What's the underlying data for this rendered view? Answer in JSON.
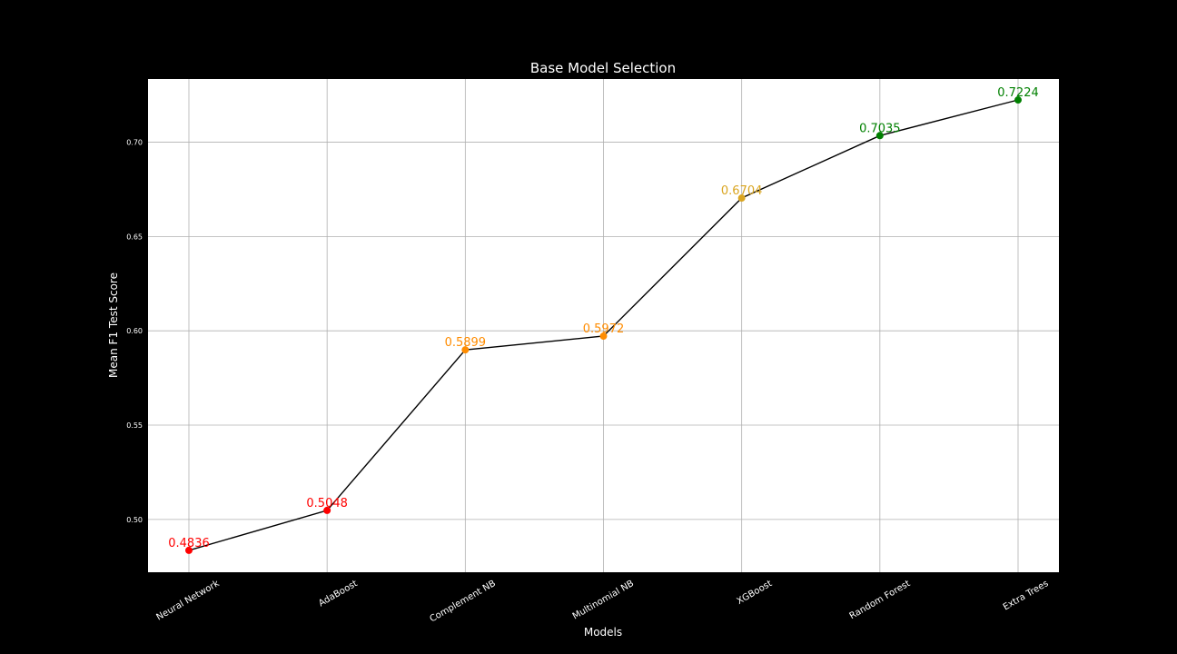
{
  "chart_data": {
    "type": "line",
    "title": "Base Model Selection",
    "xlabel": "Models",
    "ylabel": "Mean F1 Test Score",
    "categories": [
      "Neural Network",
      "AdaBoost",
      "Complement NB",
      "Multinomial NB",
      "XGBoost",
      "Random Forest",
      "Extra Trees"
    ],
    "values": [
      0.4836,
      0.5048,
      0.5899,
      0.5972,
      0.6704,
      0.7035,
      0.7224
    ],
    "labels": [
      "0.4836",
      "0.5048",
      "0.5899",
      "0.5972",
      "0.6704",
      "0.7035",
      "0.7224"
    ],
    "point_colors": [
      "#ff0000",
      "#ff0000",
      "#ff8c00",
      "#ff8c00",
      "#daa520",
      "#008000",
      "#008000"
    ],
    "line_color": "#000000",
    "plot_background": "#ffffff",
    "figure_background": "#000000",
    "ylim": [
      0.472,
      0.7335
    ],
    "yticks": [
      0.5,
      0.55,
      0.6,
      0.65,
      0.7
    ],
    "ytick_labels": [
      "0.50",
      "0.55",
      "0.60",
      "0.65",
      "0.70"
    ],
    "grid": true,
    "legend": false
  }
}
